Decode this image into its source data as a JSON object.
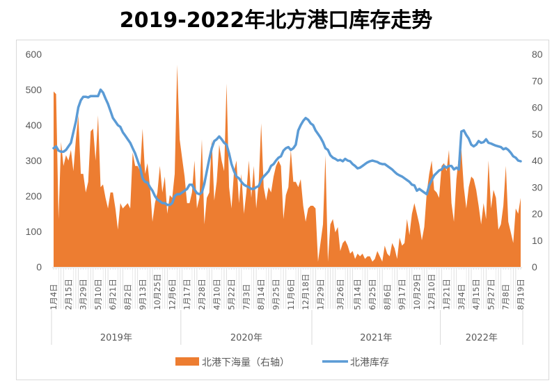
{
  "title": "2019-2022年北方港口库存走势",
  "legend": {
    "area_label": "北港下海量（右轴）",
    "line_label": "北港库存"
  },
  "colors": {
    "area": "#ED7D31",
    "line": "#5B9BD5",
    "axis_text": "#595959",
    "gridline": "#D9D9D9"
  },
  "left_axis": {
    "min": 0,
    "max": 600,
    "ticks": [
      "0",
      "100",
      "200",
      "300",
      "400",
      "500",
      "600"
    ]
  },
  "right_axis": {
    "min": 0,
    "max": 80,
    "ticks": [
      "0",
      "10",
      "20",
      "30",
      "40",
      "50",
      "60",
      "70",
      "80"
    ]
  },
  "x_tick_labels": [
    {
      "label": "1月4日",
      "idx": 0
    },
    {
      "label": "2月15日",
      "idx": 6
    },
    {
      "label": "3月29日",
      "idx": 12
    },
    {
      "label": "5月10日",
      "idx": 18
    },
    {
      "label": "6月21日",
      "idx": 24
    },
    {
      "label": "8月2日",
      "idx": 30
    },
    {
      "label": "9月13日",
      "idx": 36
    },
    {
      "label": "10月25日",
      "idx": 42
    },
    {
      "label": "12月6日",
      "idx": 48
    },
    {
      "label": "1月17日",
      "idx": 54
    },
    {
      "label": "2月28日",
      "idx": 60
    },
    {
      "label": "4月10日",
      "idx": 66
    },
    {
      "label": "5月22日",
      "idx": 72
    },
    {
      "label": "7月3日",
      "idx": 78
    },
    {
      "label": "8月14日",
      "idx": 84
    },
    {
      "label": "9月25日",
      "idx": 90
    },
    {
      "label": "11月6日",
      "idx": 96
    },
    {
      "label": "12月18日",
      "idx": 102
    },
    {
      "label": "1月29日",
      "idx": 108
    },
    {
      "label": "3月26日",
      "idx": 116
    },
    {
      "label": "5月14日",
      "idx": 123
    },
    {
      "label": "6月25日",
      "idx": 129
    },
    {
      "label": "8月6日",
      "idx": 135
    },
    {
      "label": "9月17日",
      "idx": 141
    },
    {
      "label": "10月29日",
      "idx": 147
    },
    {
      "label": "12月10日",
      "idx": 153
    },
    {
      "label": "1月21日",
      "idx": 159
    },
    {
      "label": "3月4日",
      "idx": 165
    },
    {
      "label": "4月15日",
      "idx": 171
    },
    {
      "label": "5月27日",
      "idx": 177
    },
    {
      "label": "7月8日",
      "idx": 183
    },
    {
      "label": "8月19日",
      "idx": 189
    }
  ],
  "year_groups": [
    {
      "label": "2019年",
      "start": 0,
      "end": 52
    },
    {
      "label": "2020年",
      "start": 52,
      "end": 105
    },
    {
      "label": "2021年",
      "start": 105,
      "end": 157
    },
    {
      "label": "2022年",
      "start": 157,
      "end": 190
    }
  ],
  "chart_data": {
    "type": "area+line",
    "title": "2019-2022年北方港口库存走势",
    "xlabel": "",
    "ylabel_left": "北港库存",
    "ylabel_right": "北港下海量",
    "ylim_left": [
      0,
      600
    ],
    "ylim_right": [
      0,
      80
    ],
    "x_range": "2019-01-04 to 2022-08-19 (weekly)",
    "categories_years": [
      "2019年",
      "2020年",
      "2021年",
      "2022年"
    ],
    "series": [
      {
        "name": "北港下海量（右轴）",
        "type": "area",
        "axis": "right",
        "values": [
          66,
          65,
          18,
          47,
          38,
          42,
          40,
          44,
          36,
          48,
          57,
          35,
          35,
          28,
          32,
          51,
          52,
          40,
          57,
          30,
          31,
          26,
          22,
          28,
          28,
          22,
          14,
          24,
          22,
          23,
          24,
          22,
          43,
          38,
          38,
          36,
          52,
          35,
          39,
          30,
          17,
          24,
          28,
          38,
          28,
          34,
          20,
          27,
          26,
          35,
          76,
          48,
          41,
          34,
          24,
          24,
          28,
          40,
          22,
          26,
          48,
          16,
          26,
          28,
          48,
          25,
          32,
          46,
          40,
          36,
          69,
          30,
          22,
          36,
          40,
          24,
          35,
          20,
          28,
          40,
          26,
          38,
          22,
          32,
          54,
          30,
          25,
          30,
          28,
          34,
          38,
          40,
          38,
          18,
          27,
          30,
          44,
          32,
          32,
          30,
          33,
          23,
          17,
          22,
          23,
          23,
          22,
          2,
          9,
          16,
          42,
          2,
          16,
          18,
          13,
          15,
          6,
          9,
          10,
          8,
          5,
          6,
          3,
          5,
          4,
          5,
          3,
          4,
          4,
          2,
          3,
          6,
          4,
          2,
          8,
          5,
          4,
          9,
          7,
          3,
          11,
          8,
          9,
          18,
          12,
          20,
          24,
          20,
          16,
          10,
          15,
          28,
          35,
          40,
          29,
          28,
          26,
          38,
          39,
          36,
          44,
          24,
          17,
          33,
          42,
          44,
          30,
          22,
          30,
          34,
          33,
          29,
          23,
          16,
          24,
          18,
          40,
          22,
          29,
          26,
          14,
          16,
          23,
          38,
          17,
          13,
          9,
          22,
          20,
          26
        ]
      },
      {
        "name": "北港库存",
        "type": "line",
        "axis": "left",
        "values": [
          335,
          340,
          328,
          325,
          325,
          330,
          340,
          350,
          380,
          410,
          450,
          470,
          480,
          480,
          478,
          482,
          482,
          482,
          482,
          500,
          492,
          475,
          460,
          440,
          420,
          410,
          400,
          395,
          380,
          370,
          360,
          350,
          335,
          320,
          300,
          280,
          250,
          240,
          238,
          225,
          215,
          200,
          190,
          185,
          180,
          180,
          175,
          175,
          180,
          200,
          205,
          205,
          210,
          215,
          220,
          232,
          232,
          218,
          208,
          205,
          210,
          235,
          270,
          305,
          335,
          355,
          360,
          368,
          360,
          350,
          345,
          320,
          290,
          270,
          255,
          250,
          240,
          232,
          228,
          225,
          220,
          220,
          225,
          228,
          245,
          255,
          262,
          270,
          285,
          290,
          300,
          308,
          312,
          328,
          335,
          338,
          330,
          335,
          345,
          385,
          400,
          412,
          420,
          415,
          405,
          400,
          385,
          375,
          365,
          352,
          335,
          330,
          315,
          308,
          305,
          300,
          302,
          298,
          305,
          300,
          298,
          290,
          285,
          278,
          280,
          285,
          290,
          295,
          298,
          300,
          298,
          296,
          292,
          290,
          290,
          285,
          280,
          275,
          268,
          262,
          258,
          255,
          250,
          245,
          240,
          232,
          230,
          215,
          220,
          215,
          210,
          205,
          230,
          245,
          258,
          265,
          272,
          275,
          285,
          280,
          285,
          285,
          275,
          280,
          275,
          382,
          385,
          372,
          362,
          345,
          340,
          345,
          355,
          350,
          352,
          360,
          350,
          348,
          345,
          342,
          340,
          338,
          332,
          335,
          330,
          322,
          312,
          308,
          300,
          298
        ]
      }
    ],
    "legend_position": "bottom",
    "grid": false
  }
}
